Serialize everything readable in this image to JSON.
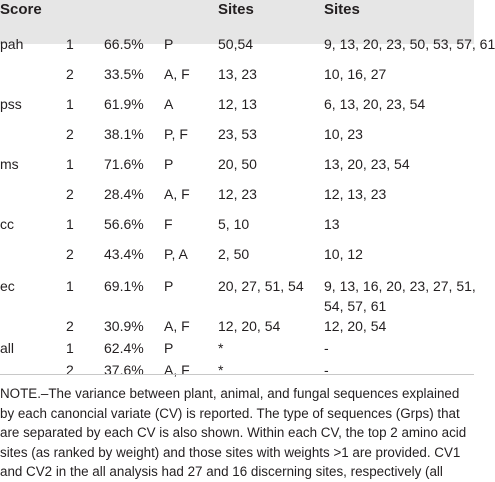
{
  "table": {
    "headers": [
      "Score",
      "",
      "",
      "",
      "Sites",
      "Sites"
    ],
    "rows": [
      {
        "score": "pah",
        "cv": "1",
        "pct": "66.5%",
        "grps": "P",
        "sites1": "50,54",
        "sites2": [
          "9, 13, 20, 23, 50, 53, 57, 61"
        ]
      },
      {
        "score": "",
        "cv": "2",
        "pct": "33.5%",
        "grps": "A, F",
        "sites1": "13, 23",
        "sites2": [
          "10, 16, 27"
        ]
      },
      {
        "score": "pss",
        "cv": "1",
        "pct": "61.9%",
        "grps": "A",
        "sites1": "12, 13",
        "sites2": [
          "6, 13, 20, 23, 54"
        ]
      },
      {
        "score": "",
        "cv": "2",
        "pct": "38.1%",
        "grps": "P, F",
        "sites1": "23, 53",
        "sites2": [
          "10, 23"
        ]
      },
      {
        "score": "ms",
        "cv": "1",
        "pct": "71.6%",
        "grps": "P",
        "sites1": "20, 50",
        "sites2": [
          "13, 20, 23, 54"
        ]
      },
      {
        "score": "",
        "cv": "2",
        "pct": "28.4%",
        "grps": "A, F",
        "sites1": "12, 23",
        "sites2": [
          "12, 13, 23"
        ]
      },
      {
        "score": "cc",
        "cv": "1",
        "pct": "56.6%",
        "grps": "F",
        "sites1": "5, 10",
        "sites2": [
          "13"
        ]
      },
      {
        "score": "",
        "cv": "2",
        "pct": "43.4%",
        "grps": "P, A",
        "sites1": "2, 50",
        "sites2": [
          "10, 12"
        ]
      },
      {
        "score": "ec",
        "cv": "1",
        "pct": "69.1%",
        "grps": "P",
        "sites1": "20, 27, 51, 54",
        "sites2": [
          "9, 13, 16, 20, 23, 27, 51,",
          "54, 57, 61"
        ]
      },
      {
        "score": "",
        "cv": "2",
        "pct": "30.9%",
        "grps": "A, F",
        "sites1": "12, 20, 54",
        "sites2": [
          "12, 20, 54"
        ]
      },
      {
        "score": "all",
        "cv": "1",
        "pct": "62.4%",
        "grps": "P",
        "sites1": "*",
        "sites2": [
          "-"
        ]
      },
      {
        "score": "",
        "cv": "2",
        "pct": "37.6%",
        "grps": "A, F",
        "sites1": "*",
        "sites2": [
          "-"
        ]
      }
    ]
  },
  "note": {
    "lines": [
      "NOTE.–The variance between plant, animal, and fungal sequences explained",
      "by each canoncial variate (CV) is reported. The type of sequences (Grps) that",
      "are separated by each CV is also shown. Within each CV, the top 2 amino acid",
      "sites (as ranked by weight) and those sites with weights >1 are provided. CV1",
      "and CV2 in the all analysis had 27 and 16 discerning sites, respectively (all"
    ]
  }
}
